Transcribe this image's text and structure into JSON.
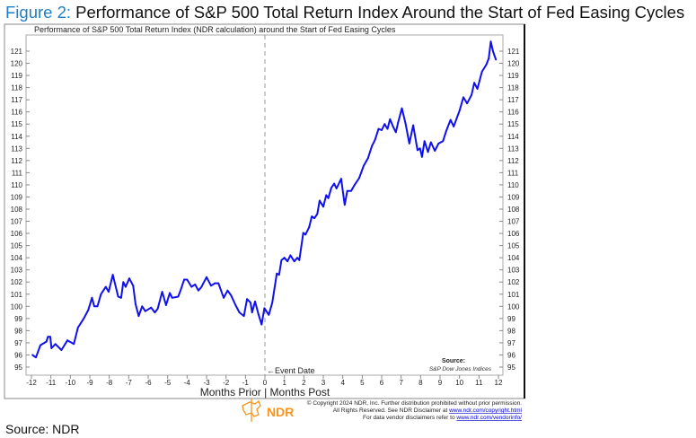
{
  "figure": {
    "label": "Figure 2:",
    "title": "Performance of S&P 500 Total Return Index Around the Start of Fed Easing Cycles",
    "source": "Source: NDR"
  },
  "footer": {
    "copyright": "© Copyright 2024 NDR, Inc. Further distribution prohibited without prior permission.",
    "rights_prefix": "All Rights Reserved. See NDR Disclaimer at ",
    "rights_link": "www.ndr.com/copyright.html",
    "vendor_prefix": "For data vendor disclaimers refer to ",
    "vendor_link": "www.ndr.com/vendorinfo/",
    "logo_text": "NDR"
  },
  "colors": {
    "line": "#1010ee",
    "title_label": "#1f7fc4",
    "logo": "#f7941d",
    "axis": "#888888"
  },
  "chart_data": {
    "type": "line",
    "title": "Performance of S&P 500 Total Return Index (NDR calculation) around the Start of Fed Easing Cycles",
    "xlabel": "Months Prior | Months Post",
    "ylabel": "",
    "xlim": [
      -12,
      12
    ],
    "ylim": [
      95,
      121
    ],
    "x_ticks": [
      -12,
      -11,
      -10,
      -9,
      -8,
      -7,
      -6,
      -5,
      -4,
      -3,
      -2,
      -1,
      0,
      1,
      2,
      3,
      4,
      5,
      6,
      7,
      8,
      9,
      10,
      11,
      12
    ],
    "y_ticks": [
      95,
      96,
      97,
      98,
      99,
      100,
      101,
      102,
      103,
      104,
      105,
      106,
      107,
      108,
      109,
      110,
      111,
      112,
      113,
      114,
      115,
      116,
      117,
      118,
      119,
      120,
      121
    ],
    "grid": false,
    "y_axis_both_sides": true,
    "annotations": {
      "event_line_x": 0,
      "event_label": "Event Date",
      "source_label": "Source:",
      "source_value": "S&P Dow Jones Indices"
    },
    "series": [
      {
        "x": [
          -11.95,
          -11.77,
          -11.54,
          -11.23,
          -11.15,
          -11.03,
          -10.97,
          -10.77,
          -10.46,
          -10.15,
          -9.82,
          -9.61,
          -9.31,
          -9.08,
          -8.89,
          -8.77,
          -8.61,
          -8.43,
          -8.18,
          -8.03,
          -7.82,
          -7.54,
          -7.39,
          -7.28,
          -7.16,
          -6.97,
          -6.77,
          -6.65,
          -6.49,
          -6.31,
          -6.15,
          -5.85,
          -5.66,
          -5.51,
          -5.28,
          -5.08,
          -4.89,
          -4.77,
          -4.46,
          -4.34,
          -4.15,
          -4.0,
          -3.77,
          -3.59,
          -3.42,
          -3.26,
          -3.0,
          -2.77,
          -2.57,
          -2.39,
          -2.12,
          -1.92,
          -1.74,
          -1.51,
          -1.31,
          -1.08,
          -0.92,
          -0.74,
          -0.66,
          -0.51,
          -0.34,
          -0.17,
          -0.03,
          0.2,
          0.38,
          0.49,
          0.61,
          0.73,
          0.85,
          1.0,
          1.16,
          1.31,
          1.51,
          1.66,
          1.77,
          1.97,
          2.08,
          2.27,
          2.41,
          2.54,
          2.69,
          2.81,
          3.0,
          3.15,
          3.26,
          3.41,
          3.56,
          3.68,
          3.92,
          4.1,
          4.23,
          4.43,
          4.61,
          4.84,
          5.07,
          5.3,
          5.5,
          5.66,
          5.84,
          6.0,
          6.15,
          6.3,
          6.43,
          6.58,
          6.73,
          6.84,
          7.04,
          7.23,
          7.42,
          7.62,
          7.84,
          7.97,
          8.07,
          8.2,
          8.38,
          8.53,
          8.73,
          8.92,
          9.15,
          9.31,
          9.54,
          9.7,
          10.0,
          10.2,
          10.39,
          10.62,
          10.76,
          10.92,
          11.15,
          11.38,
          11.5,
          11.61,
          11.72,
          11.87
        ],
        "y": [
          96.0,
          95.8,
          96.8,
          97.1,
          97.5,
          97.5,
          96.55,
          96.9,
          96.4,
          97.2,
          96.9,
          98.25,
          99.0,
          99.7,
          100.7,
          100.0,
          100.0,
          101.0,
          101.6,
          101.2,
          102.6,
          100.8,
          100.7,
          102.0,
          101.6,
          102.3,
          101.7,
          100.2,
          99.2,
          100.0,
          99.6,
          99.9,
          99.5,
          99.8,
          101.2,
          100.1,
          101.1,
          100.7,
          100.8,
          101.3,
          102.2,
          102.2,
          101.6,
          101.8,
          101.3,
          101.6,
          102.4,
          101.7,
          101.9,
          101.9,
          100.7,
          101.3,
          100.9,
          100.1,
          99.5,
          99.2,
          100.6,
          100.3,
          99.5,
          100.4,
          99.4,
          98.5,
          99.85,
          99.3,
          100.3,
          101.45,
          102.7,
          102.6,
          103.8,
          104.0,
          103.7,
          104.2,
          103.7,
          104.0,
          103.8,
          106.05,
          105.9,
          106.5,
          107.4,
          107.25,
          107.6,
          108.7,
          108.2,
          109.15,
          108.9,
          109.75,
          110.1,
          109.7,
          110.5,
          108.35,
          109.5,
          109.5,
          110.0,
          110.55,
          111.55,
          112.2,
          113.2,
          113.7,
          114.6,
          114.5,
          115.0,
          114.6,
          115.4,
          114.8,
          114.33,
          115.1,
          116.3,
          115.0,
          113.4,
          114.9,
          112.85,
          113.0,
          112.3,
          113.6,
          112.7,
          113.5,
          112.8,
          113.4,
          113.6,
          114.4,
          115.35,
          114.8,
          116.1,
          117.2,
          116.7,
          117.4,
          118.4,
          117.9,
          119.3,
          119.9,
          120.4,
          121.8,
          121.0,
          120.3
        ]
      }
    ]
  }
}
